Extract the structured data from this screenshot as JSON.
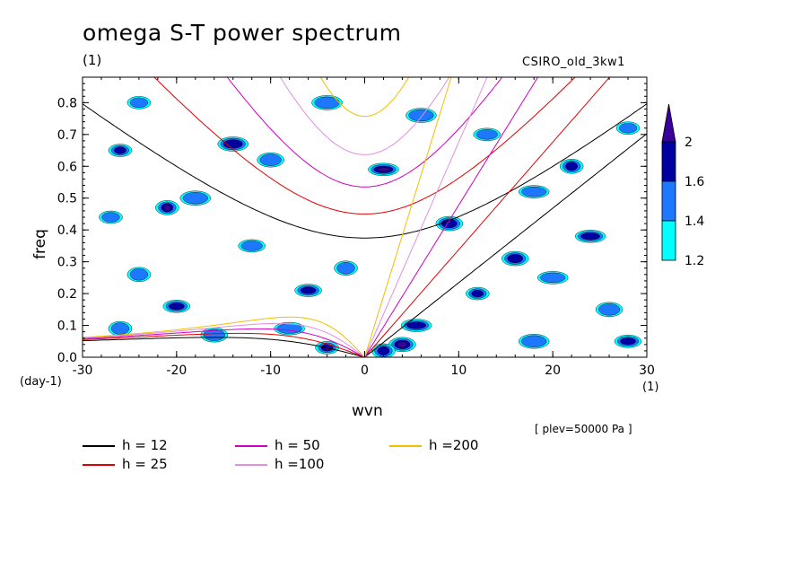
{
  "title": "omega S-T power spectrum",
  "units_label": "(1)",
  "model_label": "CSIRO_old_3kw1",
  "level_label": "[ plev=50000 Pa ]",
  "chart_data": {
    "type": "heatmap",
    "xlabel": "wvn",
    "ylabel": "freq",
    "x_unit": "(1)",
    "y_unit": "(day-1)",
    "xlim": [
      -30,
      30
    ],
    "ylim": [
      0,
      0.88
    ],
    "xticks": [
      "-30",
      "-20",
      "-10",
      "0",
      "10",
      "20",
      "30"
    ],
    "xtick_values": [
      -30,
      -20,
      -10,
      0,
      10,
      20,
      30
    ],
    "yticks": [
      "0.0",
      "0.1",
      "0.2",
      "0.3",
      "0.4",
      "0.5",
      "0.6",
      "0.7",
      "0.8"
    ],
    "ytick_values": [
      0.0,
      0.1,
      0.2,
      0.3,
      0.4,
      0.5,
      0.6,
      0.7,
      0.8
    ],
    "colorbar": {
      "levels": [
        "1.2",
        "1.4",
        "1.6",
        "2"
      ],
      "colors": [
        "#00ffff",
        "#1e78ff",
        "#0000a0",
        "#3a009a"
      ]
    },
    "contour_blobs": [
      {
        "x": -4.0,
        "y": 0.03,
        "level": 3
      },
      {
        "x": 4.0,
        "y": 0.04,
        "level": 3
      },
      {
        "x": 5.5,
        "y": 0.1,
        "level": 2
      },
      {
        "x": 2.0,
        "y": 0.02,
        "level": 2
      },
      {
        "x": 28.0,
        "y": 0.05,
        "level": 2
      },
      {
        "x": 18.0,
        "y": 0.05,
        "level": 1
      },
      {
        "x": 12.0,
        "y": 0.2,
        "level": 2
      },
      {
        "x": 16.0,
        "y": 0.31,
        "level": 2
      },
      {
        "x": 2.0,
        "y": 0.59,
        "level": 3
      },
      {
        "x": -21.0,
        "y": 0.47,
        "level": 3
      },
      {
        "x": -20.0,
        "y": 0.16,
        "level": 2
      },
      {
        "x": -14.0,
        "y": 0.67,
        "level": 2
      },
      {
        "x": -26.0,
        "y": 0.65,
        "level": 2
      },
      {
        "x": 9.0,
        "y": 0.42,
        "level": 2
      },
      {
        "x": 24.0,
        "y": 0.38,
        "level": 2
      },
      {
        "x": 22.0,
        "y": 0.6,
        "level": 2
      },
      {
        "x": -6.0,
        "y": 0.21,
        "level": 2
      },
      {
        "x": -18.0,
        "y": 0.5,
        "level": 1
      },
      {
        "x": -27.0,
        "y": 0.44,
        "level": 1
      },
      {
        "x": -10.0,
        "y": 0.62,
        "level": 1
      },
      {
        "x": 18.0,
        "y": 0.52,
        "level": 1
      },
      {
        "x": -2.0,
        "y": 0.28,
        "level": 1
      },
      {
        "x": -12.0,
        "y": 0.35,
        "level": 1
      },
      {
        "x": 6.0,
        "y": 0.76,
        "level": 1
      },
      {
        "x": -24.0,
        "y": 0.8,
        "level": 1
      },
      {
        "x": 26.0,
        "y": 0.15,
        "level": 1
      },
      {
        "x": 20.0,
        "y": 0.25,
        "level": 1
      },
      {
        "x": -24.0,
        "y": 0.26,
        "level": 1
      },
      {
        "x": 13.0,
        "y": 0.7,
        "level": 1
      },
      {
        "x": -4.0,
        "y": 0.8,
        "level": 1
      },
      {
        "x": 28.0,
        "y": 0.72,
        "level": 1
      },
      {
        "x": -16.0,
        "y": 0.07,
        "level": 1
      },
      {
        "x": -8.0,
        "y": 0.09,
        "level": 1
      },
      {
        "x": -26.0,
        "y": 0.09,
        "level": 1
      }
    ],
    "dispersion_curves": [
      {
        "name": "h = 12",
        "h": 12,
        "color": "#000000"
      },
      {
        "name": "h = 25",
        "h": 25,
        "color": "#e00000"
      },
      {
        "name": "h = 50",
        "h": 50,
        "color": "#d000c0"
      },
      {
        "name": "h =100",
        "h": 100,
        "color": "#e090e0"
      },
      {
        "name": "h =200",
        "h": 200,
        "color": "#f0c000"
      }
    ]
  }
}
